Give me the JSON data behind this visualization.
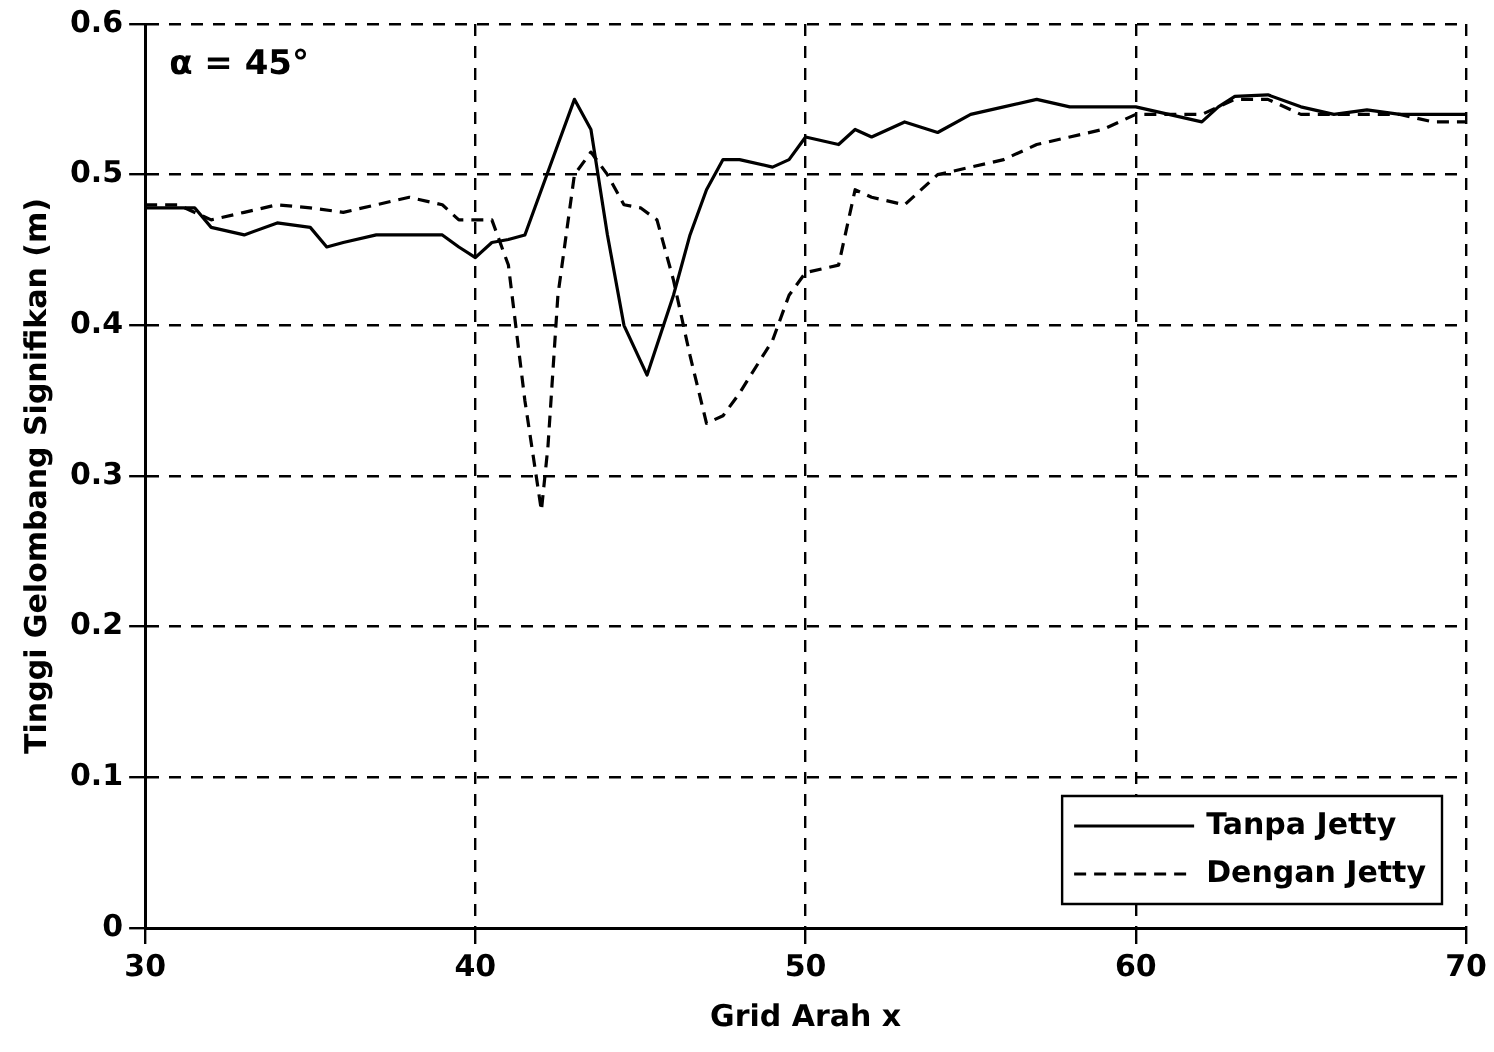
{
  "chart_data": {
    "type": "line",
    "xlabel": "Grid Arah x",
    "ylabel": "Tinggi Gelombang Signifikan (m)",
    "annotations": [
      "α = 45°"
    ],
    "xlim": [
      30,
      70
    ],
    "xticks": [
      30,
      40,
      50,
      60,
      70
    ],
    "ylim": [
      0,
      0.6
    ],
    "yticks": [
      0,
      0.1,
      0.2,
      0.3,
      0.4,
      0.5,
      0.6
    ],
    "grid": true,
    "legend": "bottom right",
    "marker": "none",
    "series": [
      {
        "name": "Tanpa Jetty",
        "color": "#000000",
        "line_style": "solid",
        "x": [
          30,
          31.5,
          32,
          33,
          34,
          35,
          35.5,
          36,
          37,
          38,
          39,
          39.5,
          40,
          40.5,
          41,
          41.5,
          42,
          42.5,
          43,
          43.5,
          44,
          44.5,
          45.2,
          46,
          46.5,
          47,
          47.5,
          48,
          49,
          49.5,
          50,
          51,
          51.5,
          52,
          53,
          54,
          55,
          56,
          57,
          58,
          59,
          60,
          61,
          62,
          62.5,
          63,
          64,
          65,
          66,
          67,
          68,
          69,
          70
        ],
        "values": [
          0.478,
          0.478,
          0.465,
          0.46,
          0.468,
          0.465,
          0.452,
          0.455,
          0.46,
          0.46,
          0.46,
          0.452,
          0.445,
          0.455,
          0.457,
          0.46,
          0.49,
          0.52,
          0.55,
          0.53,
          0.46,
          0.4,
          0.367,
          0.42,
          0.46,
          0.49,
          0.51,
          0.51,
          0.505,
          0.51,
          0.525,
          0.52,
          0.53,
          0.525,
          0.535,
          0.528,
          0.54,
          0.545,
          0.55,
          0.545,
          0.545,
          0.545,
          0.54,
          0.535,
          0.545,
          0.552,
          0.553,
          0.545,
          0.54,
          0.543,
          0.54,
          0.54,
          0.54
        ]
      },
      {
        "name": "Dengan Jetty",
        "color": "#000000",
        "line_style": "dashed",
        "x": [
          30,
          31,
          32,
          33,
          34,
          35,
          36,
          37,
          38,
          39,
          39.5,
          40,
          40.5,
          41,
          41.5,
          42,
          42.2,
          42.5,
          43,
          43.5,
          44,
          44.5,
          45,
          45.5,
          46,
          46.5,
          47,
          47.5,
          48,
          49,
          49.5,
          50,
          51,
          51.5,
          52,
          53,
          54,
          55,
          56,
          57,
          58,
          59,
          60,
          61,
          62,
          63,
          64,
          65,
          66,
          67,
          68,
          69,
          70
        ],
        "values": [
          0.48,
          0.48,
          0.47,
          0.475,
          0.48,
          0.478,
          0.475,
          0.48,
          0.485,
          0.48,
          0.47,
          0.47,
          0.47,
          0.44,
          0.35,
          0.277,
          0.32,
          0.42,
          0.5,
          0.515,
          0.5,
          0.48,
          0.478,
          0.47,
          0.43,
          0.38,
          0.335,
          0.34,
          0.355,
          0.39,
          0.42,
          0.435,
          0.44,
          0.49,
          0.485,
          0.48,
          0.5,
          0.505,
          0.51,
          0.52,
          0.525,
          0.53,
          0.54,
          0.54,
          0.54,
          0.55,
          0.55,
          0.54,
          0.54,
          0.54,
          0.54,
          0.535,
          0.535
        ]
      }
    ]
  }
}
